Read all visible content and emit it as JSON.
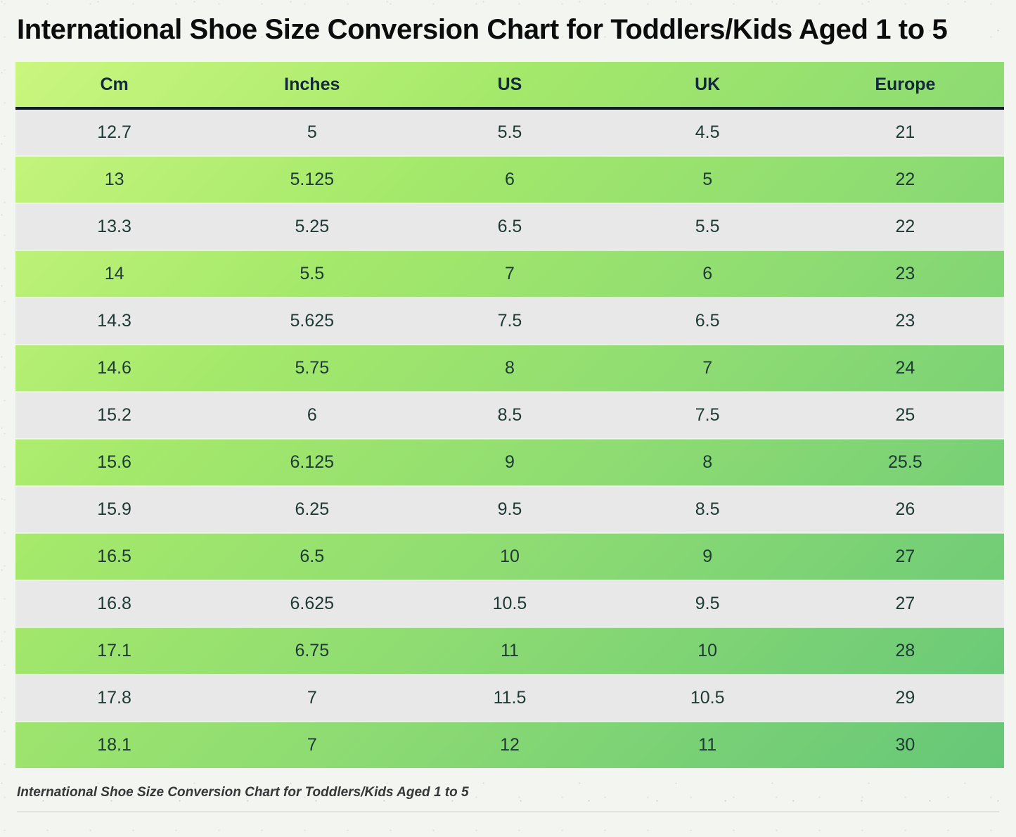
{
  "page": {
    "title": "International Shoe Size Conversion Chart for Toddlers/Kids Aged 1 to 5",
    "caption": "International Shoe Size Conversion Chart for Toddlers/Kids Aged 1 to 5"
  },
  "colors": {
    "header_gradient_start": "#caf67e",
    "header_gradient_end": "#90db78",
    "green_row_gradient_end": "#66c778",
    "gray_row": "#e9e8e8",
    "header_divider": "#0f1e27",
    "cell_text": "#1d3a34",
    "header_text": "#14293a",
    "title_text": "#0c0c0c",
    "page_background": "#f2f5f0"
  },
  "chart_data": {
    "type": "table",
    "title": "International Shoe Size Conversion Chart for Toddlers/Kids Aged 1 to 5",
    "columns": [
      "Cm",
      "Inches",
      "US",
      "UK",
      "Europe"
    ],
    "rows": [
      [
        "12.7",
        "5",
        "5.5",
        "4.5",
        "21"
      ],
      [
        "13",
        "5.125",
        "6",
        "5",
        "22"
      ],
      [
        "13.3",
        "5.25",
        "6.5",
        "5.5",
        "22"
      ],
      [
        "14",
        "5.5",
        "7",
        "6",
        "23"
      ],
      [
        "14.3",
        "5.625",
        "7.5",
        "6.5",
        "23"
      ],
      [
        "14.6",
        "5.75",
        "8",
        "7",
        "24"
      ],
      [
        "15.2",
        "6",
        "8.5",
        "7.5",
        "25"
      ],
      [
        "15.6",
        "6.125",
        "9",
        "8",
        "25.5"
      ],
      [
        "15.9",
        "6.25",
        "9.5",
        "8.5",
        "26"
      ],
      [
        "16.5",
        "6.5",
        "10",
        "9",
        "27"
      ],
      [
        "16.8",
        "6.625",
        "10.5",
        "9.5",
        "27"
      ],
      [
        "17.1",
        "6.75",
        "11",
        "10",
        "28"
      ],
      [
        "17.8",
        "7",
        "11.5",
        "10.5",
        "29"
      ],
      [
        "18.1",
        "7",
        "12",
        "11",
        "30"
      ]
    ],
    "layout": {
      "row_striping": "gray / green alternating, first data row gray",
      "green_background": "diagonal gradient light yellow-green (top-left) to medium green (bottom-right)",
      "columns_alignment": "center"
    }
  }
}
